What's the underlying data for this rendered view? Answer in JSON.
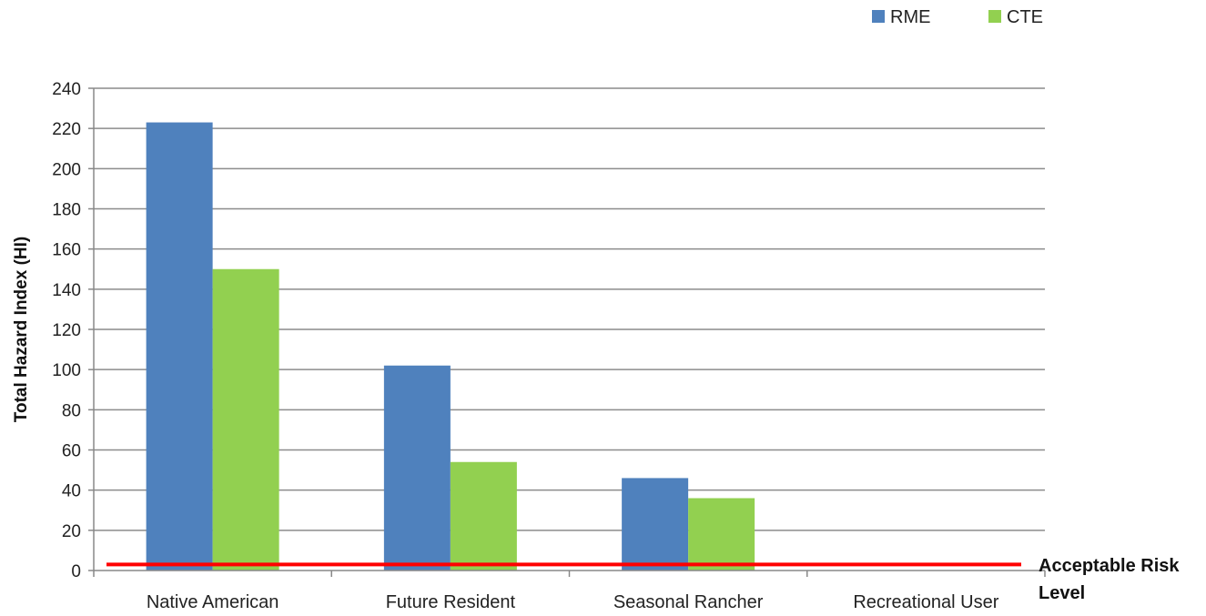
{
  "chart_data": {
    "type": "bar",
    "title": "",
    "xlabel": "",
    "ylabel": "Total Hazard Index (HI)",
    "ylim": [
      0,
      240
    ],
    "yticks": [
      0,
      20,
      40,
      60,
      80,
      100,
      120,
      140,
      160,
      180,
      200,
      220,
      240
    ],
    "grid": true,
    "legend_position": "top-right",
    "categories": [
      "Native American",
      "Future Resident",
      "Seasonal Rancher",
      "Recreational User"
    ],
    "series": [
      {
        "name": "RME",
        "color": "#4f81bd",
        "values": [
          223,
          102,
          46,
          0
        ]
      },
      {
        "name": "CTE",
        "color": "#92d050",
        "values": [
          150,
          54,
          36,
          0
        ]
      }
    ],
    "reference_line": {
      "value": 3,
      "color": "#ff0000",
      "label_lines": [
        "Acceptable Risk",
        "Level"
      ]
    }
  }
}
